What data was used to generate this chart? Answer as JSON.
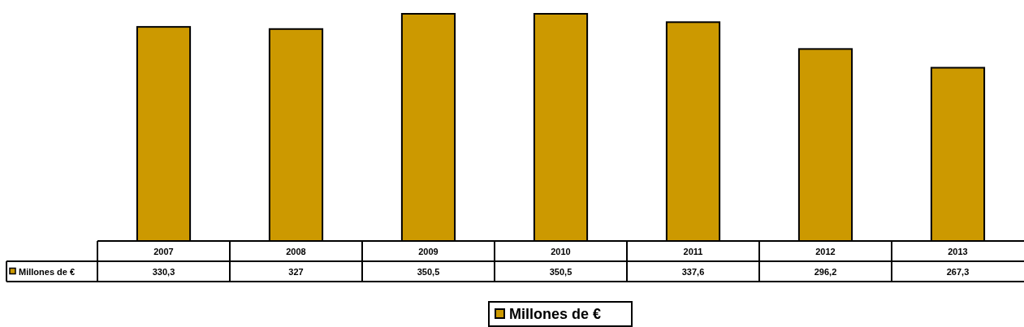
{
  "chart_data": {
    "type": "bar",
    "categories": [
      "2007",
      "2008",
      "2009",
      "2010",
      "2011",
      "2012",
      "2013"
    ],
    "series": [
      {
        "name": "Millones de €",
        "color": "#cc9900",
        "values": [
          330.3,
          327,
          350.5,
          350.5,
          337.6,
          296.2,
          267.3
        ],
        "value_labels": [
          "330,3",
          "327",
          "350,5",
          "350,5",
          "337,6",
          "296,2",
          "267,3"
        ]
      }
    ],
    "legend": "bottom"
  }
}
